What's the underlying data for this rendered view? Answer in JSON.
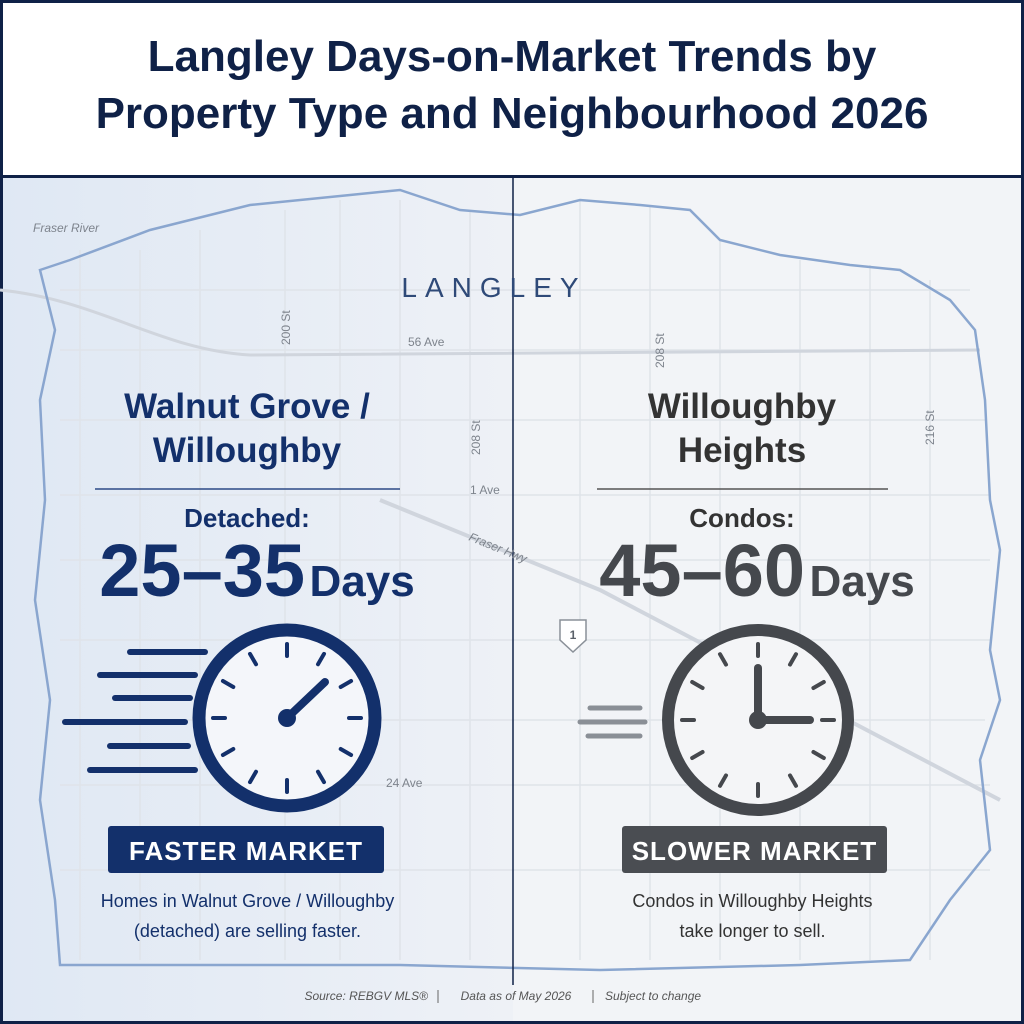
{
  "header": {
    "title": "Langley Days-on-Market Trends by Property Type and Neighbourhood 2026"
  },
  "map": {
    "region": "LANGLEY",
    "labels": [
      "Fraser River",
      "200 St",
      "56 Ave",
      "208 St",
      "208 St",
      "216 St",
      "1 Ave",
      "Fraser Hwy",
      "24 Ave",
      "1"
    ]
  },
  "panels": [
    {
      "neighbourhood": "Walnut Grove / Willoughby",
      "property_type": "Detached:",
      "range": "25–35",
      "unit": "Days",
      "badge": "FASTER MARKET",
      "note": "Homes in Walnut Grove / Willoughby (detached) are selling faster."
    },
    {
      "neighbourhood": "Willoughby Heights",
      "property_type": "Condos:",
      "range": "45–60",
      "unit": "Days",
      "badge": "SLOWER MARKET",
      "note": "Condos in Willoughby Heights take longer to sell."
    }
  ],
  "footer": {
    "source": "Source: REBGV MLS®",
    "date": "Data as of May 2026",
    "disclaimer": "Subject to change"
  }
}
